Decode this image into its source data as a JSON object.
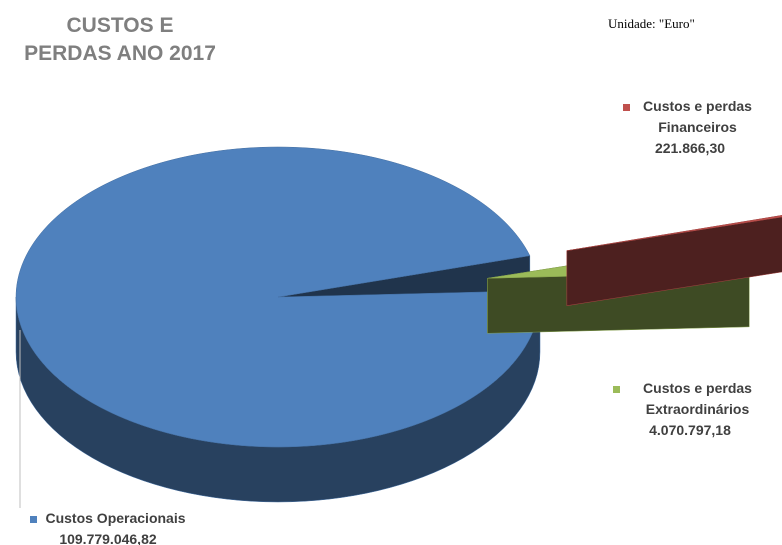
{
  "chart_data": {
    "type": "pie",
    "title": "CUSTOS E PERDAS ANO 2017",
    "subtitle": "Unidade: \"Euro\"",
    "categories": [
      "Custos Operacionais",
      "Custos e perdas Extraordinários",
      "Custos e perdas Financeiros"
    ],
    "values": [
      109779046.82,
      4070797.18,
      221866.3
    ],
    "value_labels": [
      "109.779.046,82",
      "4.070.797,18",
      "221.866,30"
    ],
    "colors": [
      "#4f81bd",
      "#9bbb59",
      "#c0504d"
    ],
    "three_d": true
  }
}
